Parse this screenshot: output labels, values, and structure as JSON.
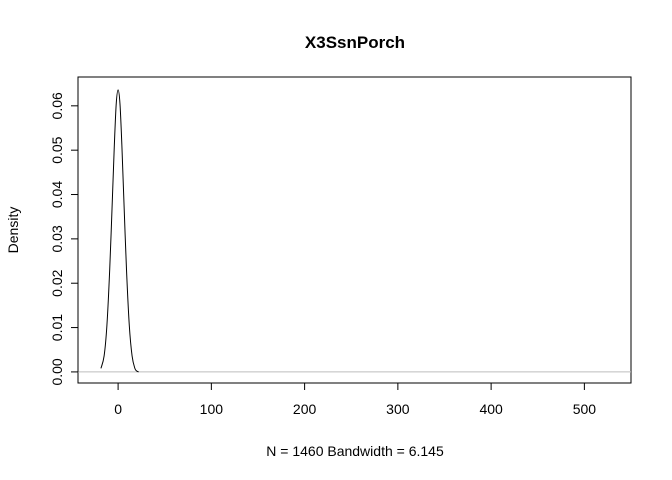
{
  "chart_data": {
    "type": "line",
    "title": "X3SsnPorch",
    "xlabel": "N = 1460   Bandwidth = 6.145",
    "ylabel": "Density",
    "xlim": [
      -43,
      550
    ],
    "ylim": [
      -0.0025,
      0.0665
    ],
    "x_ticks": [
      0,
      100,
      200,
      300,
      400,
      500
    ],
    "y_ticks": [
      0.0,
      0.01,
      0.02,
      0.03,
      0.04,
      0.05,
      0.06
    ],
    "x_tick_labels": [
      "0",
      "100",
      "200",
      "300",
      "400",
      "500"
    ],
    "y_tick_labels": [
      "0.00",
      "0.01",
      "0.02",
      "0.03",
      "0.04",
      "0.05",
      "0.06"
    ],
    "grid": false,
    "zero_line": true,
    "series": [
      {
        "x": [
          -18.4,
          -15,
          -12,
          -9,
          -6,
          -4,
          -2,
          0,
          2,
          4,
          6,
          9,
          12,
          15,
          18,
          20,
          22
        ],
        "y": [
          0.0008,
          0.0036,
          0.0105,
          0.0231,
          0.0398,
          0.0513,
          0.0605,
          0.0636,
          0.0605,
          0.0513,
          0.0398,
          0.0231,
          0.0105,
          0.0036,
          0.0008,
          0.0002,
          0.0
        ]
      }
    ],
    "colors": {
      "line": "#000000",
      "zero_line": "#bebebe",
      "frame": "#000000"
    }
  }
}
